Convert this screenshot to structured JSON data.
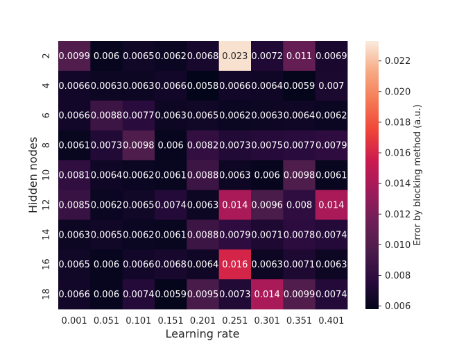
{
  "chart_data": {
    "type": "heatmap",
    "title": "",
    "xlabel": "Learning rate",
    "ylabel": "Hidden nodes",
    "colorbar_label": "Error by blocking method (a.u.)",
    "x_categories": [
      "0.001",
      "0.051",
      "0.101",
      "0.151",
      "0.201",
      "0.251",
      "0.301",
      "0.351",
      "0.401"
    ],
    "y_categories": [
      "2",
      "4",
      "6",
      "8",
      "10",
      "12",
      "14",
      "16",
      "18"
    ],
    "values": [
      [
        0.0099,
        0.006,
        0.0065,
        0.0062,
        0.0068,
        0.023,
        0.0072,
        0.011,
        0.0069
      ],
      [
        0.0066,
        0.0063,
        0.0063,
        0.0066,
        0.0058,
        0.0066,
        0.0064,
        0.0059,
        0.007
      ],
      [
        0.0066,
        0.0088,
        0.0077,
        0.0063,
        0.0065,
        0.0062,
        0.0063,
        0.0064,
        0.0062
      ],
      [
        0.0061,
        0.0073,
        0.0098,
        0.006,
        0.0082,
        0.0073,
        0.0075,
        0.0077,
        0.0079
      ],
      [
        0.0081,
        0.0064,
        0.0062,
        0.0061,
        0.0088,
        0.0063,
        0.006,
        0.0098,
        0.0061
      ],
      [
        0.0085,
        0.0062,
        0.0065,
        0.0074,
        0.0063,
        0.014,
        0.0096,
        0.008,
        0.014
      ],
      [
        0.0063,
        0.0065,
        0.0062,
        0.0061,
        0.0088,
        0.0079,
        0.0071,
        0.0078,
        0.0074
      ],
      [
        0.0065,
        0.006,
        0.0066,
        0.0068,
        0.0064,
        0.016,
        0.0063,
        0.0071,
        0.0063
      ],
      [
        0.0066,
        0.006,
        0.0074,
        0.0059,
        0.0095,
        0.0073,
        0.014,
        0.0099,
        0.0074
      ]
    ],
    "value_labels": [
      [
        "0.0099",
        "0.006",
        "0.0065",
        "0.0062",
        "0.0068",
        "0.023",
        "0.0072",
        "0.011",
        "0.0069"
      ],
      [
        "0.0066",
        "0.0063",
        "0.0063",
        "0.0066",
        "0.0058",
        "0.0066",
        "0.0064",
        "0.0059",
        "0.007"
      ],
      [
        "0.0066",
        "0.0088",
        "0.0077",
        "0.0063",
        "0.0065",
        "0.0062",
        "0.0063",
        "0.0064",
        "0.0062"
      ],
      [
        "0.0061",
        "0.0073",
        "0.0098",
        "0.006",
        "0.0082",
        "0.0073",
        "0.0075",
        "0.0077",
        "0.0079"
      ],
      [
        "0.0081",
        "0.0064",
        "0.0062",
        "0.0061",
        "0.0088",
        "0.0063",
        "0.006",
        "0.0098",
        "0.0061"
      ],
      [
        "0.0085",
        "0.0062",
        "0.0065",
        "0.0074",
        "0.0063",
        "0.014",
        "0.0096",
        "0.008",
        "0.014"
      ],
      [
        "0.0063",
        "0.0065",
        "0.0062",
        "0.0061",
        "0.0088",
        "0.0079",
        "0.0071",
        "0.0078",
        "0.0074"
      ],
      [
        "0.0065",
        "0.006",
        "0.0066",
        "0.0068",
        "0.0064",
        "0.016",
        "0.0063",
        "0.0071",
        "0.0063"
      ],
      [
        "0.0066",
        "0.006",
        "0.0074",
        "0.0059",
        "0.0095",
        "0.0073",
        "0.014",
        "0.0099",
        "0.0074"
      ]
    ],
    "colorbar_range": [
      0.0058,
      0.0233
    ],
    "colorbar_ticks": [
      0.006,
      0.008,
      0.01,
      0.012,
      0.014,
      0.016,
      0.018,
      0.02,
      0.022
    ],
    "colorbar_tick_labels": [
      "0.006",
      "0.008",
      "0.010",
      "0.012",
      "0.014",
      "0.016",
      "0.018",
      "0.020",
      "0.022"
    ],
    "colormap": "rocket",
    "colormap_stops": [
      "#03051a",
      "#2b0b3e",
      "#4c1d4b",
      "#701f57",
      "#a11a5b",
      "#cb1b4f",
      "#ef4538",
      "#f47a54",
      "#f6ab85",
      "#faebdd"
    ],
    "grid": false,
    "legend": "colorbar-right"
  }
}
